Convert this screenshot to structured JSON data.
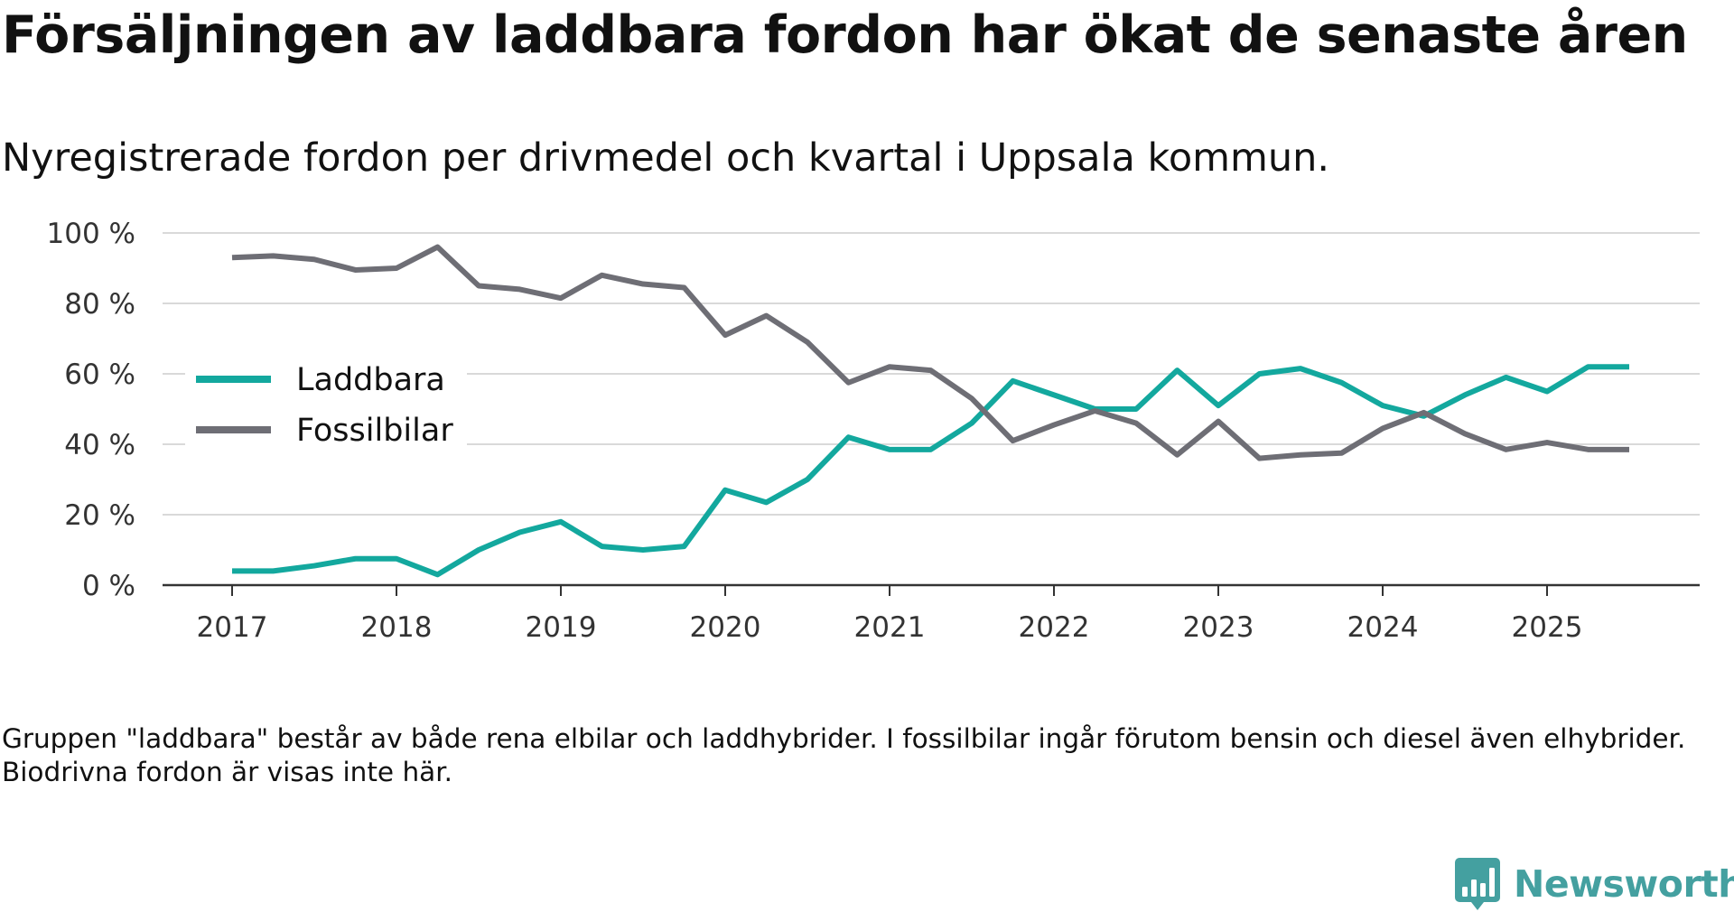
{
  "title": "Försäljningen av laddbara fordon har ökat de senaste åren",
  "subtitle": "Nyregistrerade fordon per drivmedel och kvartal i Uppsala kommun.",
  "footnote": "Gruppen \"laddbara\" består av både rena elbilar och laddhybrider. I fossilbilar ingår förutom bensin och diesel även elhybrider. Biodrivna fordon är visas inte här.",
  "brand": {
    "name": "Newsworthy",
    "accent_color": "#44a0a0"
  },
  "chart_data": {
    "type": "line",
    "title": "Försäljningen av laddbara fordon har ökat de senaste åren",
    "xlabel": "",
    "ylabel": "",
    "ylim": [
      0,
      100
    ],
    "xlim": [
      2017,
      2025.5
    ],
    "grid": true,
    "legend_position": "left",
    "y_ticks": [
      {
        "value": 0,
        "label": "0 %"
      },
      {
        "value": 20,
        "label": "20 %"
      },
      {
        "value": 40,
        "label": "40 %"
      },
      {
        "value": 60,
        "label": "60 %"
      },
      {
        "value": 80,
        "label": "80 %"
      },
      {
        "value": 100,
        "label": "100 %"
      }
    ],
    "x_ticks": [
      {
        "value": 2017,
        "label": "2017"
      },
      {
        "value": 2018,
        "label": "2018"
      },
      {
        "value": 2019,
        "label": "2019"
      },
      {
        "value": 2020,
        "label": "2020"
      },
      {
        "value": 2021,
        "label": "2021"
      },
      {
        "value": 2022,
        "label": "2022"
      },
      {
        "value": 2023,
        "label": "2023"
      },
      {
        "value": 2024,
        "label": "2024"
      },
      {
        "value": 2025,
        "label": "2025"
      }
    ],
    "x": [
      2017,
      2017.25,
      2017.5,
      2017.75,
      2018,
      2018.25,
      2018.5,
      2018.75,
      2019,
      2019.25,
      2019.5,
      2019.75,
      2020,
      2020.25,
      2020.5,
      2020.75,
      2021,
      2021.25,
      2021.5,
      2021.75,
      2022,
      2022.25,
      2022.5,
      2022.75,
      2023,
      2023.25,
      2023.5,
      2023.75,
      2024,
      2024.25,
      2024.5,
      2024.75,
      2025,
      2025.25,
      2025.5
    ],
    "series": [
      {
        "name": "Laddbara",
        "color": "#13a89e",
        "values": [
          4,
          4,
          5.5,
          7.5,
          7.5,
          3,
          10,
          15,
          18,
          11,
          10,
          11,
          27,
          23.5,
          30,
          42,
          38.5,
          38.5,
          46,
          58,
          54,
          50,
          50,
          61,
          51,
          60,
          61.5,
          57.5,
          51,
          48,
          54,
          59,
          55,
          62,
          62
        ]
      },
      {
        "name": "Fossilbilar",
        "color": "#6e6e75",
        "values": [
          93,
          93.5,
          92.5,
          89.5,
          90,
          96,
          85,
          84,
          81.5,
          88,
          85.5,
          84.5,
          71,
          76.5,
          69,
          57.5,
          62,
          61,
          53,
          41,
          45.5,
          49.5,
          46,
          37,
          46.5,
          36,
          37,
          37.5,
          44.5,
          49,
          43,
          38.5,
          40.5,
          38.5,
          38.5
        ]
      }
    ]
  }
}
